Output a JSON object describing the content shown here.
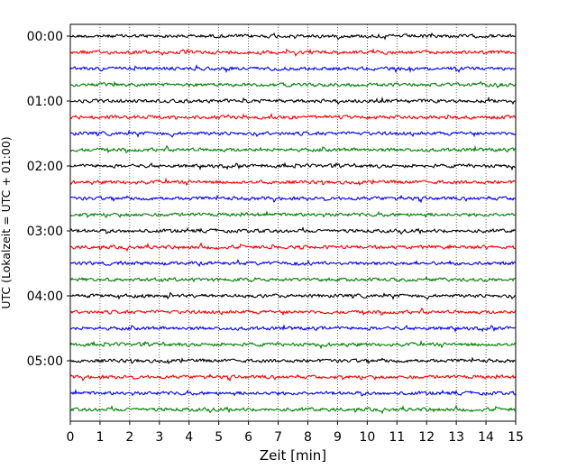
{
  "chart_data": {
    "type": "line",
    "title": "",
    "xlabel": "Zeit  [min]",
    "ylabel": "UTC (Lokalzeit = UTC + 01:00)",
    "xlim": [
      0,
      15
    ],
    "xticks": [
      "0",
      "1",
      "2",
      "3",
      "4",
      "5",
      "6",
      "7",
      "8",
      "9",
      "10",
      "11",
      "12",
      "13",
      "14",
      "15"
    ],
    "yticks": [
      "00:00",
      "01:00",
      "02:00",
      "03:00",
      "04:00",
      "05:00"
    ],
    "grid": "vertical dotted at each minute",
    "trace_interval_minutes": 15,
    "series_colors": [
      "#000000",
      "#ff0000",
      "#0000ff",
      "#008000"
    ],
    "traces_start_time": "00:00",
    "traces_end_time": "05:45",
    "trace_count": 24
  }
}
